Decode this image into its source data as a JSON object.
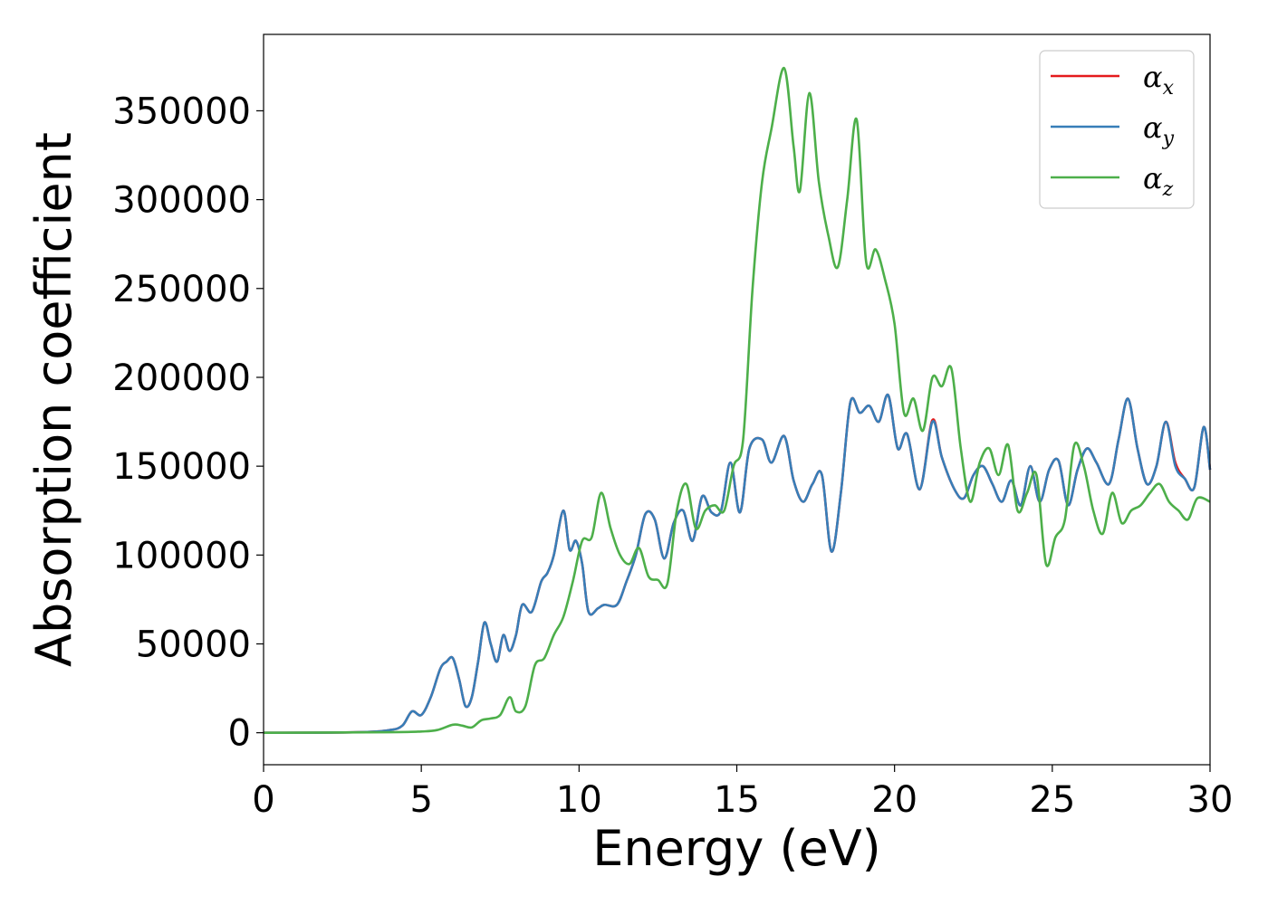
{
  "chart_data": {
    "type": "line",
    "title": "",
    "xlabel": "Energy (eV)",
    "ylabel": "Absorption coefficient",
    "xlim": [
      0,
      30
    ],
    "ylim": [
      -18000,
      393000
    ],
    "xticks": [
      0,
      5,
      10,
      15,
      20,
      25,
      30
    ],
    "xtick_labels": [
      "0",
      "5",
      "10",
      "15",
      "20",
      "25",
      "30"
    ],
    "yticks": [
      0,
      50000,
      100000,
      150000,
      200000,
      250000,
      300000,
      350000
    ],
    "ytick_labels": [
      "0",
      "50000",
      "100000",
      "150000",
      "200000",
      "250000",
      "300000",
      "350000"
    ],
    "grid": false,
    "legend_position": "top-right",
    "series": [
      {
        "name": "α_x",
        "symbol": "α",
        "subscript": "x",
        "color": "#e41a1c",
        "x": [
          0,
          3,
          4,
          4.4,
          4.7,
          5.0,
          5.3,
          5.6,
          5.8,
          6.0,
          6.2,
          6.4,
          6.6,
          6.8,
          7.0,
          7.2,
          7.4,
          7.6,
          7.8,
          8.0,
          8.2,
          8.5,
          8.8,
          9.0,
          9.2,
          9.5,
          9.7,
          9.9,
          10.1,
          10.3,
          10.6,
          10.8,
          11.2,
          11.5,
          11.8,
          12.1,
          12.4,
          12.7,
          13.0,
          13.3,
          13.6,
          13.9,
          14.2,
          14.5,
          14.8,
          15.1,
          15.4,
          15.8,
          16.1,
          16.5,
          16.8,
          17.1,
          17.4,
          17.7,
          18.0,
          18.3,
          18.6,
          18.9,
          19.2,
          19.5,
          19.8,
          20.1,
          20.4,
          20.8,
          21.2,
          21.5,
          21.9,
          22.2,
          22.5,
          22.8,
          23.1,
          23.4,
          23.7,
          24.0,
          24.3,
          24.6,
          24.9,
          25.2,
          25.5,
          25.8,
          26.1,
          26.4,
          26.8,
          27.1,
          27.4,
          27.7,
          28.0,
          28.3,
          28.6,
          28.9,
          29.2,
          29.5,
          29.8,
          30.0
        ],
        "values": [
          0,
          300,
          1500,
          4000,
          12000,
          10000,
          20000,
          36000,
          40000,
          42000,
          30000,
          15000,
          20000,
          40000,
          62000,
          50000,
          40000,
          55000,
          46000,
          55000,
          72000,
          68000,
          85000,
          90000,
          100000,
          125000,
          103000,
          108000,
          95000,
          68000,
          70000,
          72000,
          72000,
          85000,
          100000,
          123000,
          120000,
          98000,
          118000,
          125000,
          108000,
          133000,
          124000,
          125000,
          152000,
          124000,
          160000,
          165000,
          152000,
          167000,
          142000,
          130000,
          140000,
          145000,
          102000,
          135000,
          186000,
          180000,
          184000,
          175000,
          190000,
          160000,
          168000,
          137000,
          176000,
          155000,
          137000,
          132000,
          145000,
          150000,
          140000,
          130000,
          142000,
          128000,
          150000,
          130000,
          148000,
          153000,
          128000,
          148000,
          160000,
          152000,
          140000,
          165000,
          188000,
          160000,
          140000,
          150000,
          175000,
          152000,
          143000,
          138000,
          172000,
          148000
        ]
      },
      {
        "name": "α_y",
        "symbol": "α",
        "subscript": "y",
        "color": "#377eb8",
        "x": [
          0,
          3,
          4,
          4.4,
          4.7,
          5.0,
          5.3,
          5.6,
          5.8,
          6.0,
          6.2,
          6.4,
          6.6,
          6.8,
          7.0,
          7.2,
          7.4,
          7.6,
          7.8,
          8.0,
          8.2,
          8.5,
          8.8,
          9.0,
          9.2,
          9.5,
          9.7,
          9.9,
          10.1,
          10.3,
          10.6,
          10.8,
          11.2,
          11.5,
          11.8,
          12.1,
          12.4,
          12.7,
          13.0,
          13.3,
          13.6,
          13.9,
          14.2,
          14.5,
          14.8,
          15.1,
          15.4,
          15.8,
          16.1,
          16.5,
          16.8,
          17.1,
          17.4,
          17.7,
          18.0,
          18.3,
          18.6,
          18.9,
          19.2,
          19.5,
          19.8,
          20.1,
          20.4,
          20.8,
          21.2,
          21.5,
          21.9,
          22.2,
          22.5,
          22.8,
          23.1,
          23.4,
          23.7,
          24.0,
          24.3,
          24.6,
          24.9,
          25.2,
          25.5,
          25.8,
          26.1,
          26.4,
          26.8,
          27.1,
          27.4,
          27.7,
          28.0,
          28.3,
          28.6,
          28.9,
          29.2,
          29.5,
          29.8,
          30.0
        ],
        "values": [
          0,
          300,
          1500,
          4000,
          12000,
          10000,
          20000,
          36000,
          40000,
          42000,
          30000,
          15000,
          20000,
          40000,
          62000,
          50000,
          40000,
          55000,
          46000,
          55000,
          72000,
          68000,
          85000,
          90000,
          100000,
          125000,
          103000,
          108000,
          95000,
          68000,
          70000,
          72000,
          72000,
          85000,
          100000,
          123000,
          120000,
          98000,
          118000,
          125000,
          108000,
          133000,
          124000,
          125000,
          152000,
          124000,
          160000,
          165000,
          152000,
          167000,
          142000,
          130000,
          140000,
          145000,
          102000,
          135000,
          186000,
          180000,
          184000,
          175000,
          190000,
          160000,
          168000,
          137000,
          175000,
          155000,
          137000,
          132000,
          145000,
          150000,
          140000,
          130000,
          142000,
          128000,
          150000,
          130000,
          148000,
          153000,
          128000,
          148000,
          160000,
          152000,
          140000,
          165000,
          188000,
          160000,
          140000,
          150000,
          175000,
          150000,
          143000,
          138000,
          172000,
          148000
        ]
      },
      {
        "name": "α_z",
        "symbol": "α",
        "subscript": "z",
        "color": "#4daf4a",
        "x": [
          0,
          4,
          5,
          5.5,
          6.0,
          6.3,
          6.6,
          6.9,
          7.2,
          7.5,
          7.8,
          8.0,
          8.3,
          8.6,
          8.9,
          9.2,
          9.5,
          9.8,
          10.1,
          10.4,
          10.7,
          11.0,
          11.3,
          11.6,
          11.9,
          12.2,
          12.5,
          12.8,
          13.1,
          13.4,
          13.7,
          14.0,
          14.3,
          14.6,
          14.9,
          15.2,
          15.5,
          15.8,
          16.1,
          16.5,
          16.8,
          17.0,
          17.3,
          17.6,
          17.9,
          18.2,
          18.5,
          18.8,
          19.1,
          19.4,
          19.7,
          20.0,
          20.3,
          20.6,
          20.9,
          21.2,
          21.5,
          21.8,
          22.1,
          22.4,
          22.7,
          23.0,
          23.3,
          23.6,
          23.9,
          24.2,
          24.5,
          24.8,
          25.1,
          25.4,
          25.7,
          26.0,
          26.3,
          26.6,
          26.9,
          27.2,
          27.5,
          27.8,
          28.1,
          28.4,
          28.7,
          29.0,
          29.3,
          29.6,
          30.0
        ],
        "values": [
          0,
          300,
          700,
          1500,
          4500,
          4000,
          3000,
          7000,
          8000,
          10000,
          20000,
          12000,
          15000,
          38000,
          42000,
          55000,
          65000,
          85000,
          108000,
          110000,
          135000,
          115000,
          100000,
          95000,
          104000,
          88000,
          86000,
          84000,
          125000,
          140000,
          115000,
          125000,
          128000,
          125000,
          150000,
          165000,
          250000,
          310000,
          340000,
          374000,
          330000,
          305000,
          360000,
          310000,
          280000,
          262000,
          300000,
          345000,
          265000,
          272000,
          255000,
          230000,
          180000,
          188000,
          170000,
          200000,
          195000,
          205000,
          160000,
          130000,
          152000,
          160000,
          145000,
          162000,
          125000,
          135000,
          145000,
          95000,
          110000,
          120000,
          162000,
          150000,
          125000,
          112000,
          135000,
          118000,
          125000,
          128000,
          135000,
          140000,
          130000,
          125000,
          120000,
          132000,
          130000
        ]
      }
    ]
  }
}
